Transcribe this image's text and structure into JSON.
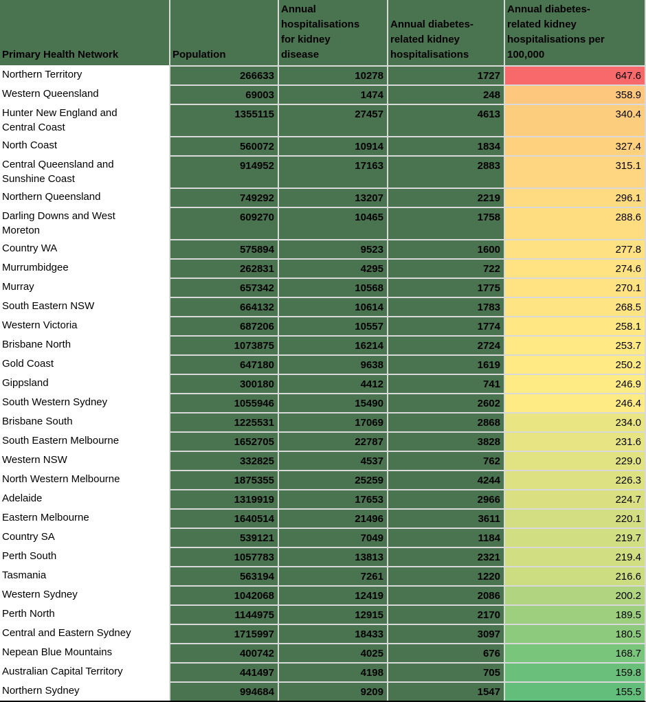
{
  "chart_data": {
    "type": "table",
    "columns": [
      "Primary Health Network",
      "Population",
      "Annual hospitalisations for kidney disease",
      "Annual diabetes-related kidney hospitalisations",
      "Annual diabetes-related kidney hospitalisations per 100,000"
    ],
    "rows": [
      {
        "phn": "Northern Territory",
        "population": 266633,
        "kidney_hospitalisations": 10278,
        "diabetes_kidney_hospitalisations": 1727,
        "rate_per_100000": "647.6"
      },
      {
        "phn": "Western Queensland",
        "population": 69003,
        "kidney_hospitalisations": 1474,
        "diabetes_kidney_hospitalisations": 248,
        "rate_per_100000": "358.9"
      },
      {
        "phn": "Hunter New England and Central Coast",
        "population": 1355115,
        "kidney_hospitalisations": 27457,
        "diabetes_kidney_hospitalisations": 4613,
        "rate_per_100000": "340.4"
      },
      {
        "phn": "North Coast",
        "population": 560072,
        "kidney_hospitalisations": 10914,
        "diabetes_kidney_hospitalisations": 1834,
        "rate_per_100000": "327.4"
      },
      {
        "phn": "Central Queensland and Sunshine Coast",
        "population": 914952,
        "kidney_hospitalisations": 17163,
        "diabetes_kidney_hospitalisations": 2883,
        "rate_per_100000": "315.1"
      },
      {
        "phn": "Northern Queensland",
        "population": 749292,
        "kidney_hospitalisations": 13207,
        "diabetes_kidney_hospitalisations": 2219,
        "rate_per_100000": "296.1"
      },
      {
        "phn": "Darling Downs and West Moreton",
        "population": 609270,
        "kidney_hospitalisations": 10465,
        "diabetes_kidney_hospitalisations": 1758,
        "rate_per_100000": "288.6"
      },
      {
        "phn": "Country WA",
        "population": 575894,
        "kidney_hospitalisations": 9523,
        "diabetes_kidney_hospitalisations": 1600,
        "rate_per_100000": "277.8"
      },
      {
        "phn": "Murrumbidgee",
        "population": 262831,
        "kidney_hospitalisations": 4295,
        "diabetes_kidney_hospitalisations": 722,
        "rate_per_100000": "274.6"
      },
      {
        "phn": "Murray",
        "population": 657342,
        "kidney_hospitalisations": 10568,
        "diabetes_kidney_hospitalisations": 1775,
        "rate_per_100000": "270.1"
      },
      {
        "phn": "South Eastern NSW",
        "population": 664132,
        "kidney_hospitalisations": 10614,
        "diabetes_kidney_hospitalisations": 1783,
        "rate_per_100000": "268.5"
      },
      {
        "phn": "Western Victoria",
        "population": 687206,
        "kidney_hospitalisations": 10557,
        "diabetes_kidney_hospitalisations": 1774,
        "rate_per_100000": "258.1"
      },
      {
        "phn": "Brisbane North",
        "population": 1073875,
        "kidney_hospitalisations": 16214,
        "diabetes_kidney_hospitalisations": 2724,
        "rate_per_100000": "253.7"
      },
      {
        "phn": "Gold Coast",
        "population": 647180,
        "kidney_hospitalisations": 9638,
        "diabetes_kidney_hospitalisations": 1619,
        "rate_per_100000": "250.2"
      },
      {
        "phn": "Gippsland",
        "population": 300180,
        "kidney_hospitalisations": 4412,
        "diabetes_kidney_hospitalisations": 741,
        "rate_per_100000": "246.9"
      },
      {
        "phn": "South Western Sydney",
        "population": 1055946,
        "kidney_hospitalisations": 15490,
        "diabetes_kidney_hospitalisations": 2602,
        "rate_per_100000": "246.4"
      },
      {
        "phn": "Brisbane South",
        "population": 1225531,
        "kidney_hospitalisations": 17069,
        "diabetes_kidney_hospitalisations": 2868,
        "rate_per_100000": "234.0"
      },
      {
        "phn": "South Eastern Melbourne",
        "population": 1652705,
        "kidney_hospitalisations": 22787,
        "diabetes_kidney_hospitalisations": 3828,
        "rate_per_100000": "231.6"
      },
      {
        "phn": "Western NSW",
        "population": 332825,
        "kidney_hospitalisations": 4537,
        "diabetes_kidney_hospitalisations": 762,
        "rate_per_100000": "229.0"
      },
      {
        "phn": "North Western Melbourne",
        "population": 1875355,
        "kidney_hospitalisations": 25259,
        "diabetes_kidney_hospitalisations": 4244,
        "rate_per_100000": "226.3"
      },
      {
        "phn": "Adelaide",
        "population": 1319919,
        "kidney_hospitalisations": 17653,
        "diabetes_kidney_hospitalisations": 2966,
        "rate_per_100000": "224.7"
      },
      {
        "phn": "Eastern Melbourne",
        "population": 1640514,
        "kidney_hospitalisations": 21496,
        "diabetes_kidney_hospitalisations": 3611,
        "rate_per_100000": "220.1"
      },
      {
        "phn": "Country SA",
        "population": 539121,
        "kidney_hospitalisations": 7049,
        "diabetes_kidney_hospitalisations": 1184,
        "rate_per_100000": "219.7"
      },
      {
        "phn": "Perth South",
        "population": 1057783,
        "kidney_hospitalisations": 13813,
        "diabetes_kidney_hospitalisations": 2321,
        "rate_per_100000": "219.4"
      },
      {
        "phn": "Tasmania",
        "population": 563194,
        "kidney_hospitalisations": 7261,
        "diabetes_kidney_hospitalisations": 1220,
        "rate_per_100000": "216.6"
      },
      {
        "phn": "Western Sydney",
        "population": 1042068,
        "kidney_hospitalisations": 12419,
        "diabetes_kidney_hospitalisations": 2086,
        "rate_per_100000": "200.2"
      },
      {
        "phn": "Perth North",
        "population": 1144975,
        "kidney_hospitalisations": 12915,
        "diabetes_kidney_hospitalisations": 2170,
        "rate_per_100000": "189.5"
      },
      {
        "phn": "Central and Eastern Sydney",
        "population": 1715997,
        "kidney_hospitalisations": 18433,
        "diabetes_kidney_hospitalisations": 3097,
        "rate_per_100000": "180.5"
      },
      {
        "phn": "Nepean Blue Mountains",
        "population": 400742,
        "kidney_hospitalisations": 4025,
        "diabetes_kidney_hospitalisations": 676,
        "rate_per_100000": "168.7"
      },
      {
        "phn": "Australian Capital Territory",
        "population": 441497,
        "kidney_hospitalisations": 4198,
        "diabetes_kidney_hospitalisations": 705,
        "rate_per_100000": "159.8"
      },
      {
        "phn": "Northern Sydney",
        "population": 994684,
        "kidney_hospitalisations": 9209,
        "diabetes_kidney_hospitalisations": 1547,
        "rate_per_100000": "155.5"
      }
    ],
    "color_scale": {
      "applies_to": "rate_per_100000",
      "type": "3-color-scale",
      "min_value": 155.5,
      "mid_value": 246.4,
      "max_value": 647.6,
      "min_color": "#63BE7B",
      "mid_color": "#FFEB84",
      "max_color": "#F8696B"
    },
    "layout": {
      "header_fill": "#4A7350",
      "data_fill": "#4A7350",
      "first_column_fill": "#FFFFFF",
      "gridline_color": "#D9D9D9",
      "bottom_border_color": "#000000",
      "text_color": "#000000"
    }
  }
}
